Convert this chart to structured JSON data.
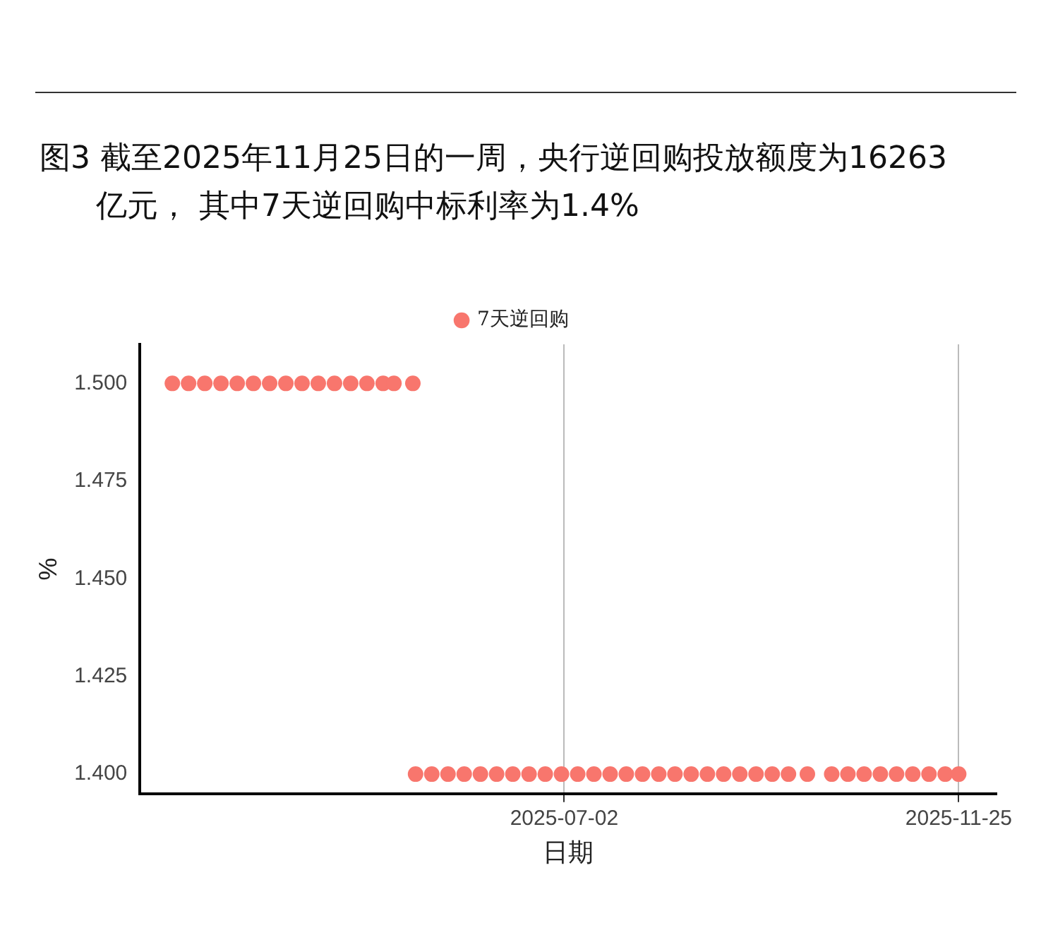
{
  "chart_data": {
    "type": "scatter",
    "title": "图3  截至2025年11月25日的一周，央行逆回购投放额度为16263亿元， 其中7天逆回购中标利率为1.4%",
    "xlabel": "日期",
    "ylabel": "%",
    "x": [
      "2025-02-07",
      "2025-02-13",
      "2025-02-19",
      "2025-02-25",
      "2025-03-03",
      "2025-03-09",
      "2025-03-15",
      "2025-03-21",
      "2025-03-27",
      "2025-04-02",
      "2025-04-08",
      "2025-04-14",
      "2025-04-20",
      "2025-04-26",
      "2025-04-30",
      "2025-05-07",
      "2025-05-08",
      "2025-05-14",
      "2025-05-20",
      "2025-05-26",
      "2025-06-01",
      "2025-06-07",
      "2025-06-13",
      "2025-06-19",
      "2025-06-25",
      "2025-07-01",
      "2025-07-07",
      "2025-07-13",
      "2025-07-19",
      "2025-07-25",
      "2025-07-31",
      "2025-08-06",
      "2025-08-12",
      "2025-08-18",
      "2025-08-24",
      "2025-08-30",
      "2025-09-05",
      "2025-09-11",
      "2025-09-17",
      "2025-09-23",
      "2025-09-30",
      "2025-10-09",
      "2025-10-15",
      "2025-10-21",
      "2025-10-27",
      "2025-11-02",
      "2025-11-08",
      "2025-11-14",
      "2025-11-20",
      "2025-11-25"
    ],
    "series": [
      {
        "name": "7天逆回购",
        "color": "#f8766d",
        "values": [
          1.5,
          1.5,
          1.5,
          1.5,
          1.5,
          1.5,
          1.5,
          1.5,
          1.5,
          1.5,
          1.5,
          1.5,
          1.5,
          1.5,
          1.5,
          1.5,
          1.4,
          1.4,
          1.4,
          1.4,
          1.4,
          1.4,
          1.4,
          1.4,
          1.4,
          1.4,
          1.4,
          1.4,
          1.4,
          1.4,
          1.4,
          1.4,
          1.4,
          1.4,
          1.4,
          1.4,
          1.4,
          1.4,
          1.4,
          1.4,
          1.4,
          1.4,
          1.4,
          1.4,
          1.4,
          1.4,
          1.4,
          1.4,
          1.4,
          1.4
        ]
      }
    ],
    "xlim": [
      "2025-01-26",
      "2025-12-09"
    ],
    "xticks": [
      "2025-07-02",
      "2025-11-25"
    ],
    "ylim": [
      1.395,
      1.51
    ],
    "yticks": [
      {
        "value": 1.4,
        "label": "1.400"
      },
      {
        "value": 1.425,
        "label": "1.425"
      },
      {
        "value": 1.45,
        "label": "1.450"
      },
      {
        "value": 1.475,
        "label": "1.475"
      },
      {
        "value": 1.5,
        "label": "1.500"
      }
    ],
    "grid": "x",
    "legend": "top",
    "marker": "circle"
  }
}
